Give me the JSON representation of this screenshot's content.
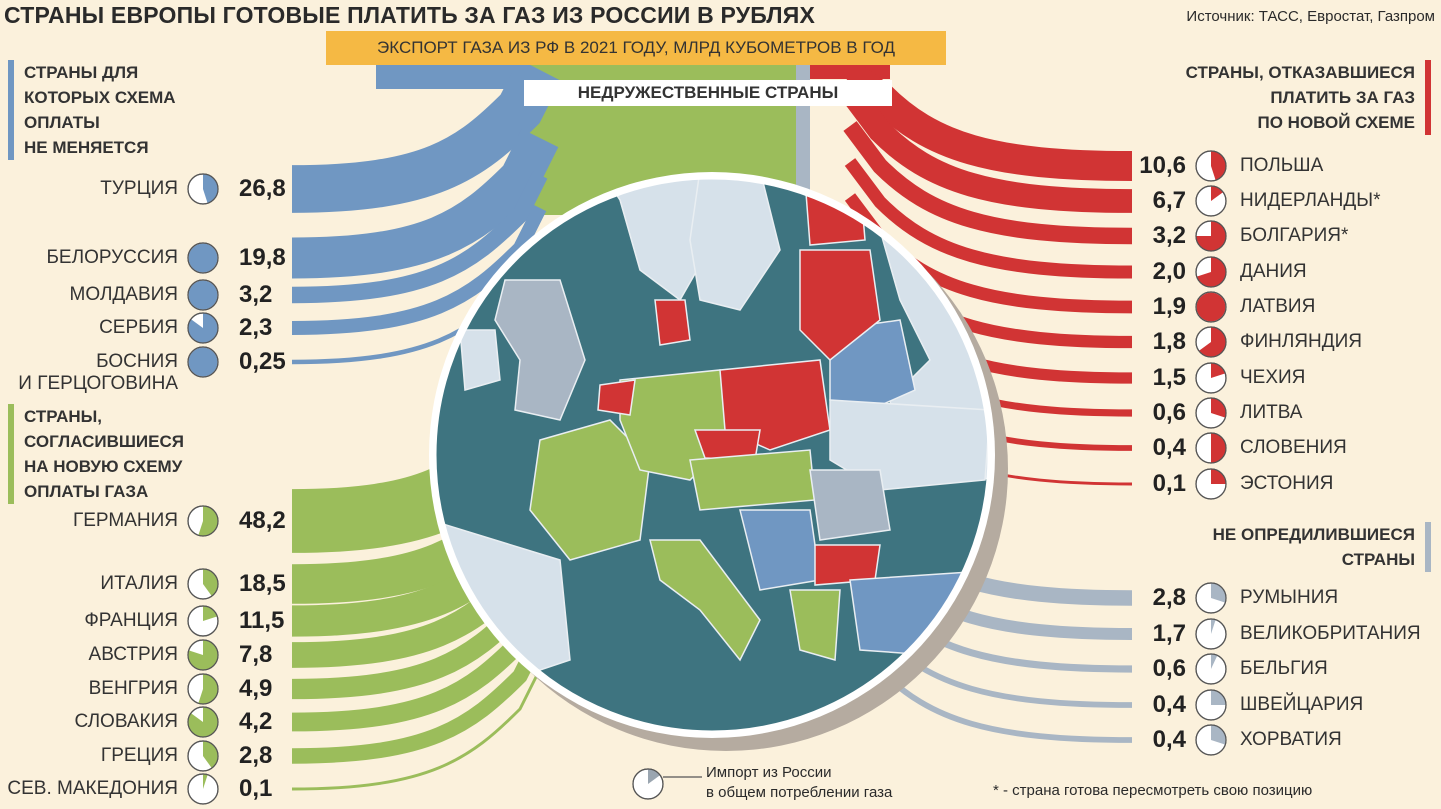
{
  "title": "СТРАНЫ ЕВРОПЫ ГОТОВЫЕ ПЛАТИТЬ ЗА ГАЗ ИЗ РОССИИ В РУБЛЯХ",
  "source": "Источник: ТАСС, Евростат, Газпром",
  "subtitle": "ЭКСПОРТ ГАЗА ИЗ РФ В 2021 ГОДУ, МЛРД КУБОМЕТРОВ В ГОД",
  "unfriendly_label": "НЕДРУЖЕСТВЕННЫЕ СТРАНЫ",
  "legend": {
    "line1": "Импорт из России",
    "line2": "в общем потреблении газа"
  },
  "footnote": "* - страна готова пересмотреть свою позицию",
  "colors": {
    "blue": "#7097c2",
    "green": "#9bbd5b",
    "red": "#d13434",
    "gray": "#a9b6c4",
    "sea": "#3e7480",
    "bg": "#fbf1dc"
  },
  "chart_data": {
    "type": "bar",
    "title": "СТРАНЫ ЕВРОПЫ ГОТОВЫЕ ПЛАТИТЬ ЗА ГАЗ ИЗ РОССИИ В РУБЛЯХ",
    "subtitle": "ЭКСПОРТ ГАЗА ИЗ РФ В 2021 ГОДУ, МЛРД КУБОМЕТРОВ В ГОД",
    "groups": [
      {
        "key": "unchanged",
        "side": "left",
        "color": "#7097c2",
        "label": [
          "СТРАНЫ ДЛЯ",
          "КОТОРЫХ СХЕМА",
          "ОПЛАТЫ",
          "НЕ МЕНЯЕТСЯ"
        ],
        "items": [
          {
            "name": "ТУРЦИЯ",
            "value": 26.8,
            "label": "26,8",
            "share": 0.45
          },
          {
            "name": "БЕЛОРУССИЯ",
            "value": 19.8,
            "label": "19,8",
            "share": 1.0
          },
          {
            "name": "МОЛДАВИЯ",
            "value": 3.2,
            "label": "3,2",
            "share": 1.0
          },
          {
            "name": "СЕРБИЯ",
            "value": 2.3,
            "label": "2,3",
            "share": 0.85
          },
          {
            "name": "БОСНИЯ И ГЕРЦОГОВИНА",
            "name_lines": [
              "БОСНИЯ",
              "И ГЕРЦОГОВИНА"
            ],
            "value": 0.25,
            "label": "0,25",
            "share": 1.0
          }
        ]
      },
      {
        "key": "agreed",
        "side": "left",
        "color": "#9bbd5b",
        "label": [
          "СТРАНЫ,",
          "СОГЛАСИВШИЕСЯ",
          "НА НОВУЮ СХЕМУ",
          "ОПЛАТЫ ГАЗА"
        ],
        "items": [
          {
            "name": "ГЕРМАНИЯ",
            "value": 48.2,
            "label": "48,2",
            "share": 0.55
          },
          {
            "name": "ИТАЛИЯ",
            "value": 18.5,
            "label": "18,5",
            "share": 0.4
          },
          {
            "name": "ФРАНЦИЯ",
            "value": 11.5,
            "label": "11,5",
            "share": 0.2
          },
          {
            "name": "АВСТРИЯ",
            "value": 7.8,
            "label": "7,8",
            "share": 0.8
          },
          {
            "name": "ВЕНГРИЯ",
            "value": 4.9,
            "label": "4,9",
            "share": 0.55
          },
          {
            "name": "СЛОВАКИЯ",
            "value": 4.2,
            "label": "4,2",
            "share": 0.85
          },
          {
            "name": "ГРЕЦИЯ",
            "value": 2.8,
            "label": "2,8",
            "share": 0.4
          },
          {
            "name": "СЕВ. МАКЕДОНИЯ",
            "value": 0.1,
            "label": "0,1",
            "share": 0.05
          }
        ]
      },
      {
        "key": "refused",
        "side": "right",
        "color": "#d13434",
        "label": [
          "СТРАНЫ, ОТКАЗАВШИЕСЯ",
          "ПЛАТИТЬ ЗА ГАЗ",
          "ПО НОВОЙ СХЕМЕ"
        ],
        "items": [
          {
            "name": "ПОЛЬША",
            "value": 10.6,
            "label": "10,6",
            "share": 0.45
          },
          {
            "name": "НИДЕРЛАНДЫ*",
            "value": 6.7,
            "label": "6,7",
            "share": 0.15
          },
          {
            "name": "БОЛГАРИЯ*",
            "value": 3.2,
            "label": "3,2",
            "share": 0.75
          },
          {
            "name": "ДАНИЯ",
            "value": 2.0,
            "label": "2,0",
            "share": 0.7
          },
          {
            "name": "ЛАТВИЯ",
            "value": 1.9,
            "label": "1,9",
            "share": 1.0
          },
          {
            "name": "ФИНЛЯНДИЯ",
            "value": 1.8,
            "label": "1,8",
            "share": 0.65
          },
          {
            "name": "ЧЕХИЯ",
            "value": 1.5,
            "label": "1,5",
            "share": 0.2
          },
          {
            "name": "ЛИТВА",
            "value": 0.6,
            "label": "0,6",
            "share": 0.3
          },
          {
            "name": "СЛОВЕНИЯ",
            "value": 0.4,
            "label": "0,4",
            "share": 0.5
          },
          {
            "name": "ЭСТОНИЯ",
            "value": 0.1,
            "label": "0,1",
            "share": 0.25
          }
        ]
      },
      {
        "key": "undecided",
        "side": "right",
        "color": "#a9b6c4",
        "label": [
          "НЕ ОПРЕДИЛИВШИЕСЯ",
          "СТРАНЫ"
        ],
        "items": [
          {
            "name": "РУМЫНИЯ",
            "value": 2.8,
            "label": "2,8",
            "share": 0.3
          },
          {
            "name": "ВЕЛИКОБРИТАНИЯ",
            "value": 1.7,
            "label": "1,7",
            "share": 0.05
          },
          {
            "name": "БЕЛЬГИЯ",
            "value": 0.6,
            "label": "0,6",
            "share": 0.07
          },
          {
            "name": "ШВЕЙЦАРИЯ",
            "value": 0.4,
            "label": "0,4",
            "share": 0.25
          },
          {
            "name": "ХОРВАТИЯ",
            "value": 0.4,
            "label": "0,4",
            "share": 0.3
          }
        ]
      }
    ]
  }
}
